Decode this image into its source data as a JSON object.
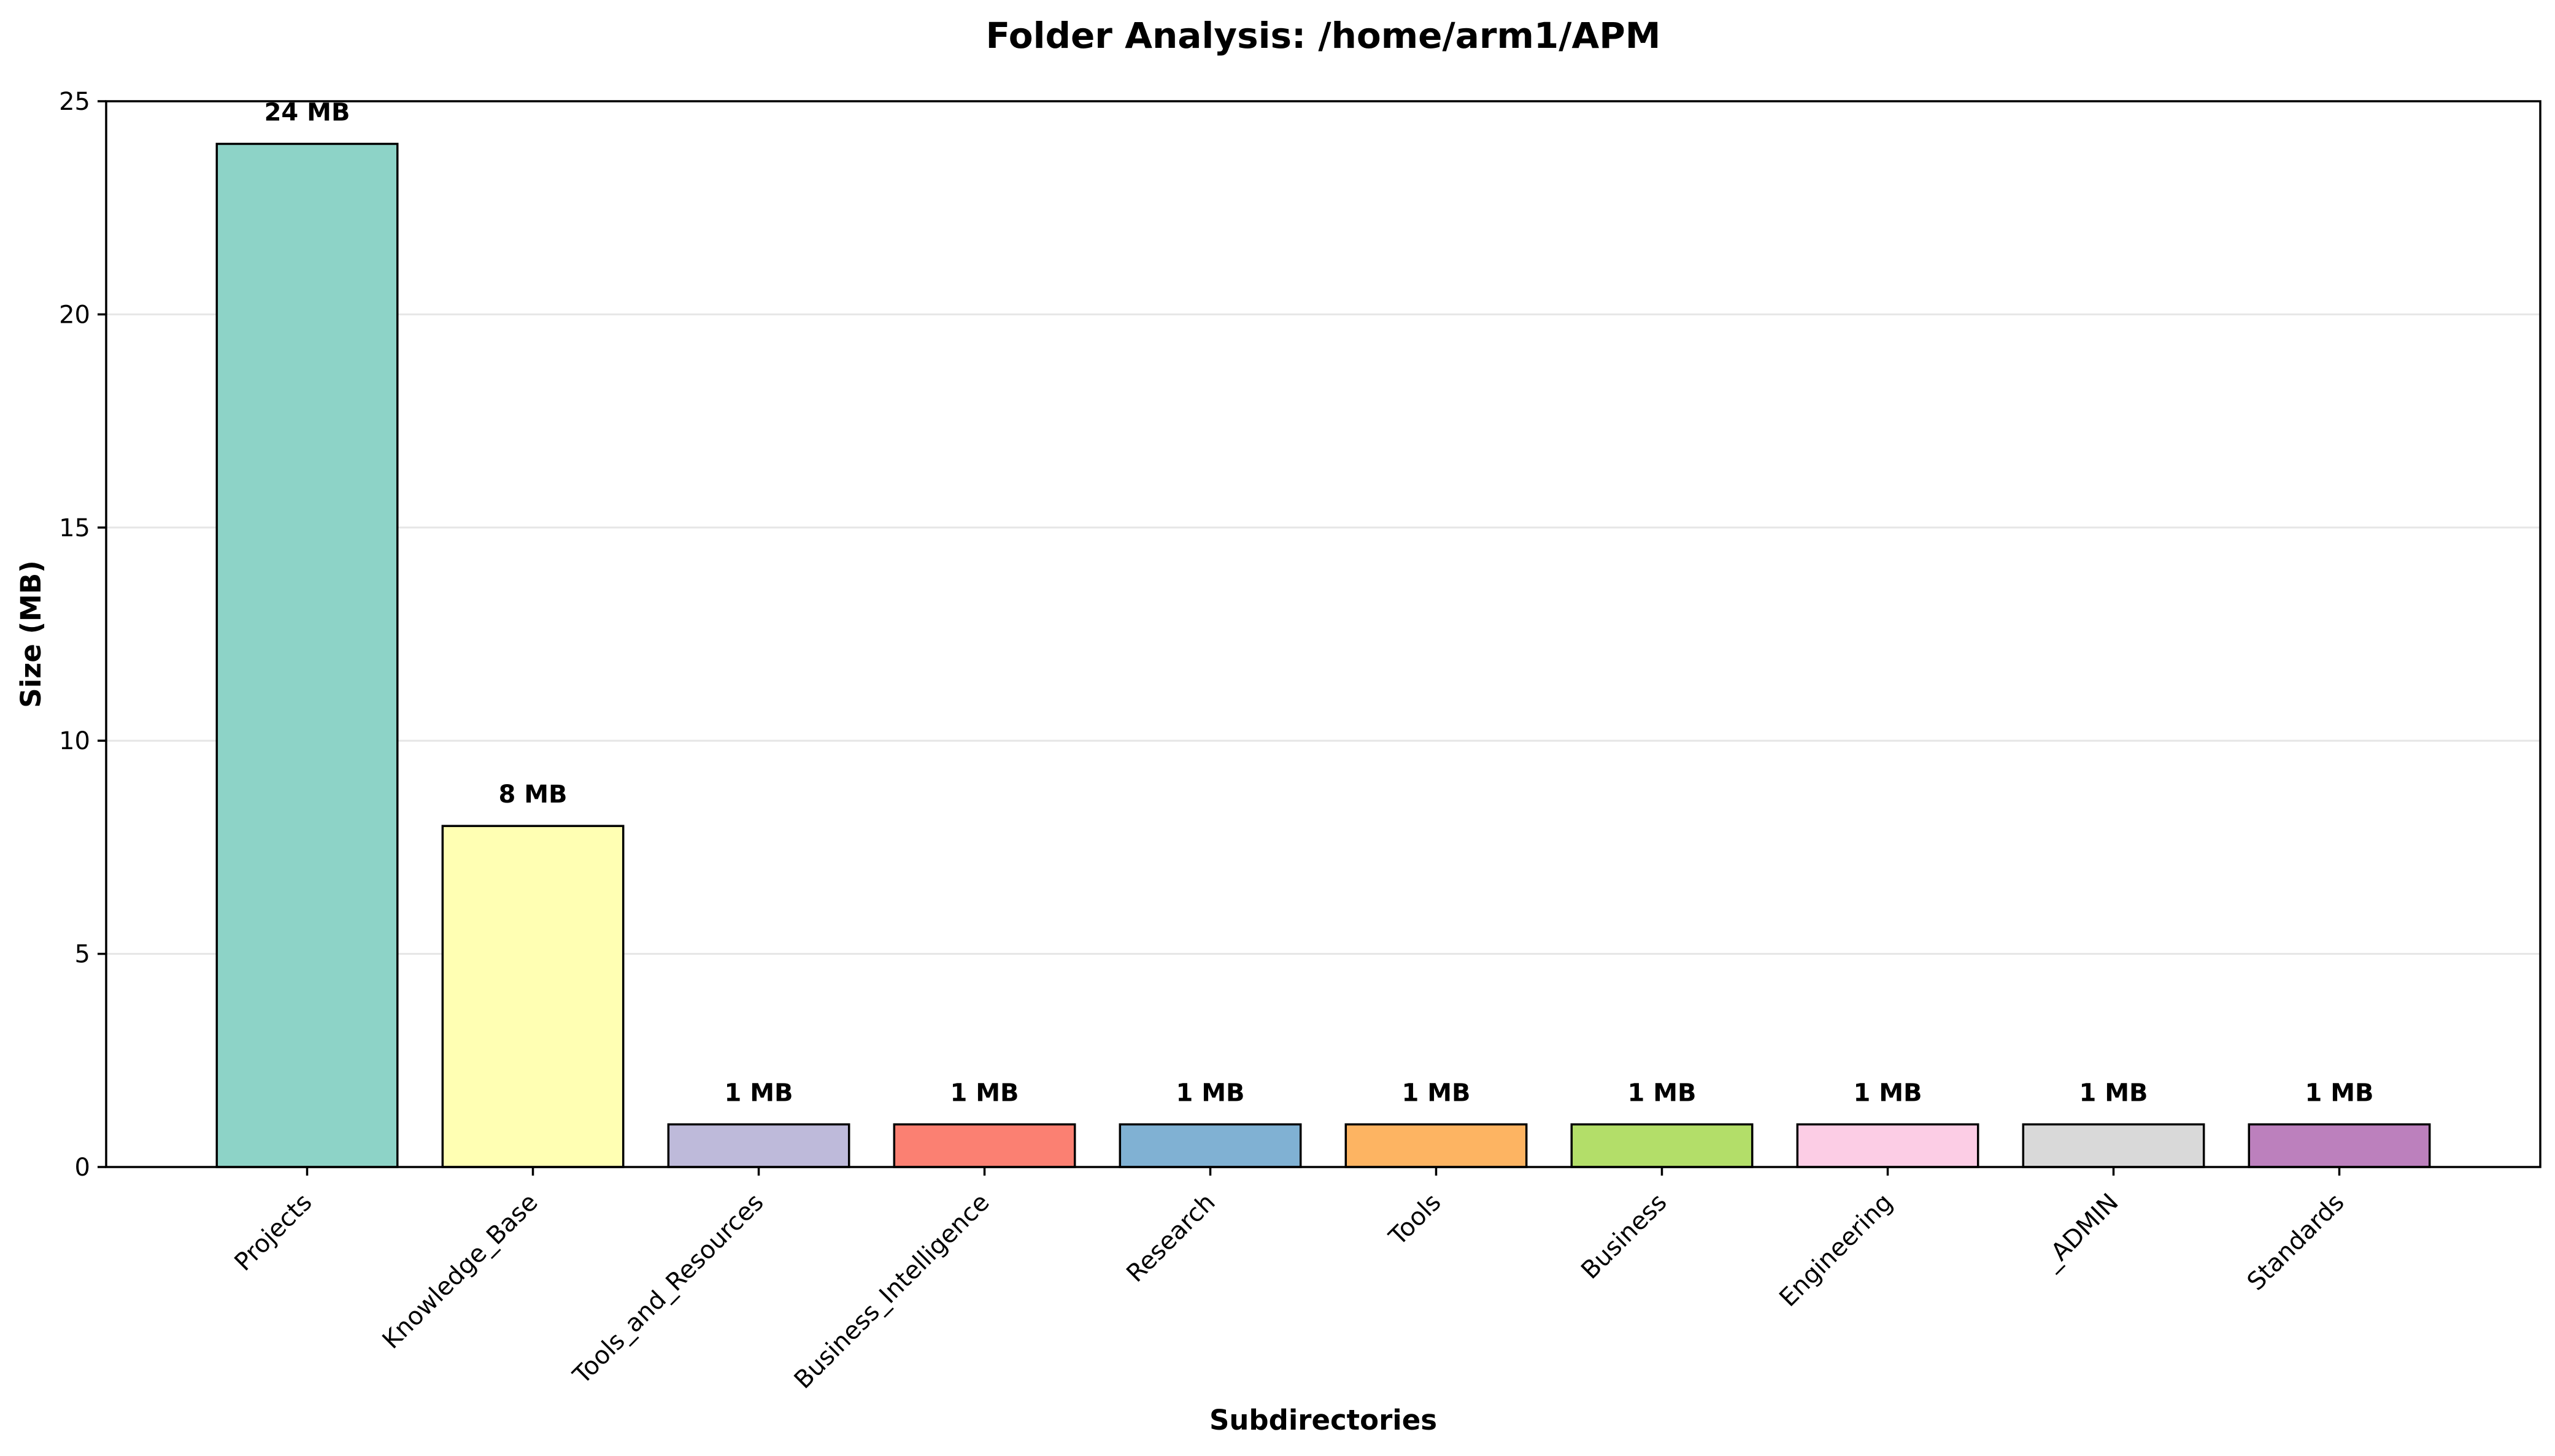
{
  "chart_data": {
    "type": "bar",
    "title": "Folder Analysis: /home/arm1/APM",
    "xlabel": "Subdirectories",
    "ylabel": "Size (MB)",
    "ylim": [
      0,
      25
    ],
    "yticks": [
      0,
      5,
      10,
      15,
      20,
      25
    ],
    "grid": "y-axis, light gray",
    "categories": [
      "Projects",
      "Knowledge_Base",
      "Tools_and_Resources",
      "Business_Intelligence",
      "Research",
      "Tools",
      "Business",
      "Engineering",
      "_ADMIN",
      "Standards"
    ],
    "values": [
      24,
      8,
      1,
      1,
      1,
      1,
      1,
      1,
      1,
      1
    ],
    "data_labels": [
      "24 MB",
      "8 MB",
      "1 MB",
      "1 MB",
      "1 MB",
      "1 MB",
      "1 MB",
      "1 MB",
      "1 MB",
      "1 MB"
    ],
    "colors": [
      "#8dd3c7",
      "#ffffb3",
      "#bebada",
      "#fb8072",
      "#80b1d3",
      "#fdb462",
      "#b3de69",
      "#fccde5",
      "#d9d9d9",
      "#bc80bd"
    ]
  }
}
